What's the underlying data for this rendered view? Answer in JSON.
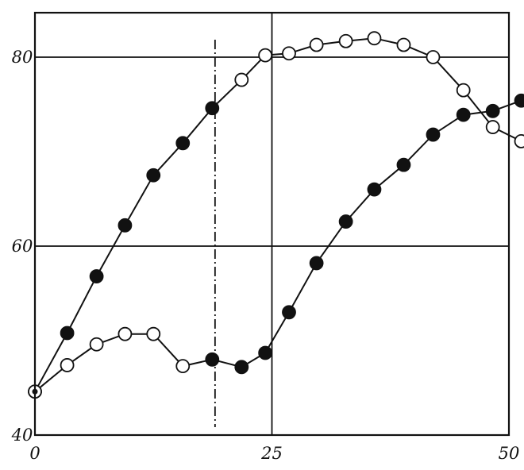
{
  "chart_data": {
    "type": "line",
    "title": "",
    "xlabel": "",
    "ylabel": "",
    "xlim": [
      0,
      50
    ],
    "ylim": [
      40,
      84
    ],
    "x_ticks": [
      0,
      25,
      50
    ],
    "x_tick_labels": [
      "0",
      "25",
      "50"
    ],
    "y_ticks": [
      40,
      60,
      80
    ],
    "y_tick_labels": [
      "40",
      "60",
      "80"
    ],
    "grid": {
      "horizontal_at": [
        60,
        80
      ],
      "vertical_at": [
        25
      ]
    },
    "marker_line_x": 19,
    "colors": {
      "ink": "#111111",
      "background": "#ffffff"
    },
    "series": [
      {
        "marker": "filled-then-open",
        "x": [
          0,
          3.4,
          6.5,
          9.5,
          12.5,
          15.6,
          18.7,
          21.8,
          24.3,
          26.8,
          29.7,
          32.8,
          35.8,
          38.9,
          42,
          45.2,
          48.3,
          51.3
        ],
        "y": [
          44.6,
          50.8,
          56.8,
          62.2,
          67.5,
          70.9,
          74.6,
          77.6,
          80.2,
          80.4,
          81.3,
          81.7,
          82,
          81.3,
          80,
          76.5,
          72.6,
          71.1
        ],
        "filled": [
          true,
          true,
          true,
          true,
          true,
          true,
          true,
          false,
          false,
          false,
          false,
          false,
          false,
          false,
          false,
          false,
          false,
          false
        ]
      },
      {
        "marker": "open-then-filled",
        "x": [
          0,
          3.4,
          6.5,
          9.5,
          12.5,
          15.6,
          18.7,
          21.8,
          24.3,
          26.8,
          29.7,
          32.8,
          35.8,
          38.9,
          42,
          45.2,
          48.3,
          51.3
        ],
        "y": [
          44.6,
          47.4,
          49.6,
          50.7,
          50.7,
          47.3,
          48,
          47.2,
          48.7,
          53,
          58.2,
          62.6,
          66,
          68.6,
          71.8,
          73.9,
          74.3,
          75.4
        ],
        "filled": [
          false,
          false,
          false,
          false,
          false,
          false,
          true,
          true,
          true,
          true,
          true,
          true,
          true,
          true,
          true,
          true,
          true,
          true
        ]
      }
    ]
  }
}
